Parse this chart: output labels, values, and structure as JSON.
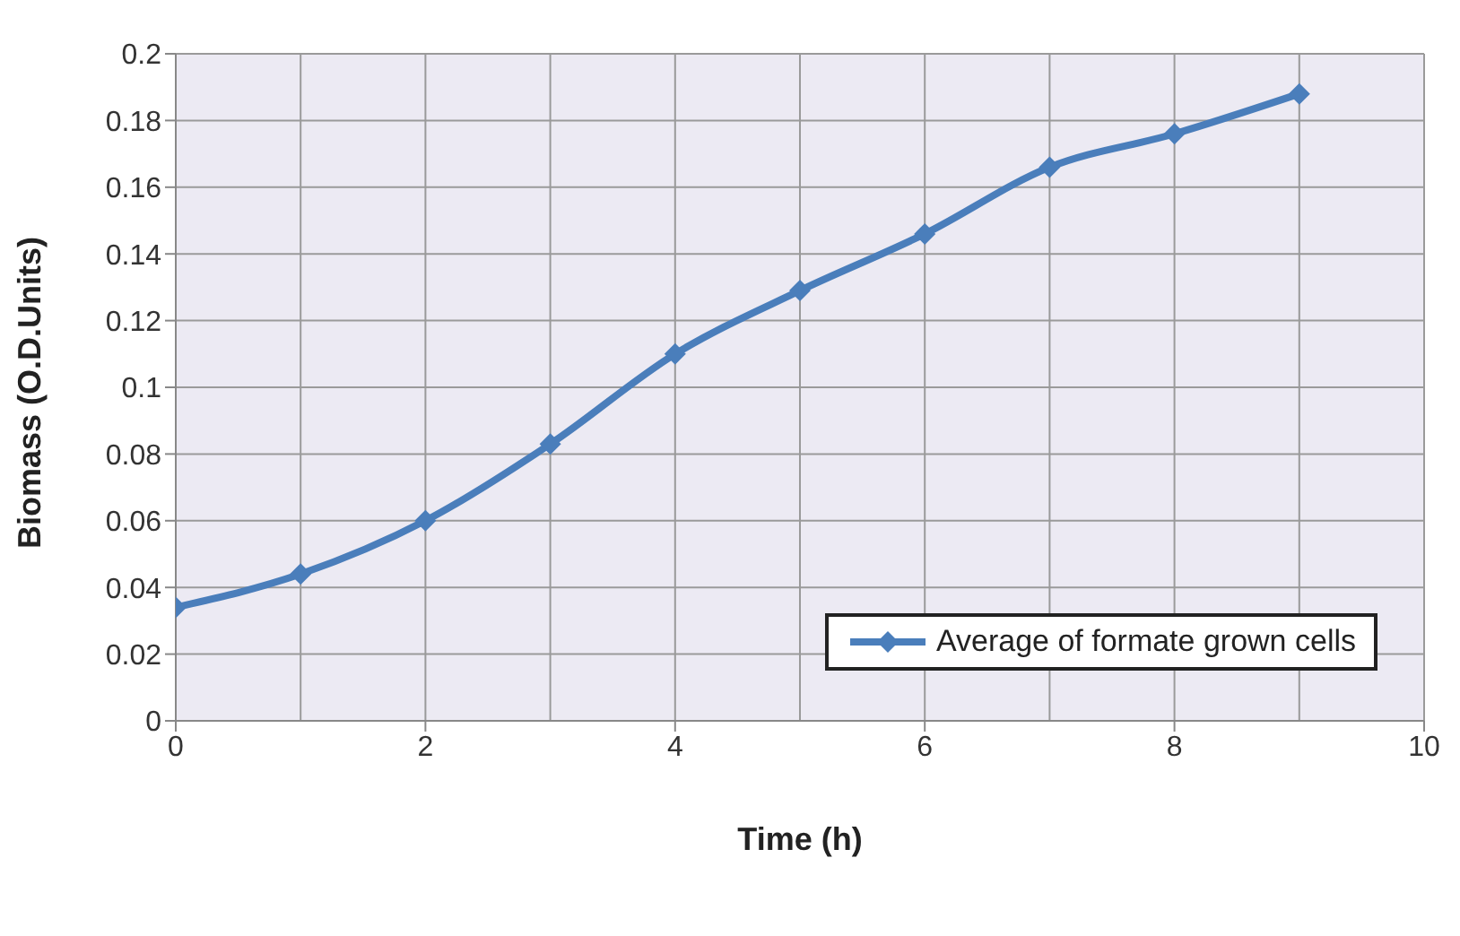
{
  "chart_data": {
    "type": "line",
    "xlabel": "Time (h)",
    "ylabel": "Biomass (O.D.Units)",
    "x": [
      0,
      1,
      2,
      3,
      4,
      5,
      6,
      7,
      8,
      9
    ],
    "series": [
      {
        "name": "Average of formate grown cells",
        "color": "#4a7ebb",
        "values": [
          0.034,
          0.044,
          0.06,
          0.083,
          0.11,
          0.129,
          0.146,
          0.166,
          0.176,
          0.188
        ]
      }
    ],
    "xlim": [
      0,
      10
    ],
    "xticks": [
      0,
      2,
      4,
      6,
      8,
      10
    ],
    "ylim": [
      0,
      0.2
    ],
    "yticks": [
      0,
      0.02,
      0.04,
      0.06,
      0.08,
      0.1,
      0.12,
      0.14,
      0.16,
      0.18,
      0.2
    ],
    "grid": true,
    "legend": "bottom right",
    "marker": "diamond",
    "line_style": "solid"
  }
}
